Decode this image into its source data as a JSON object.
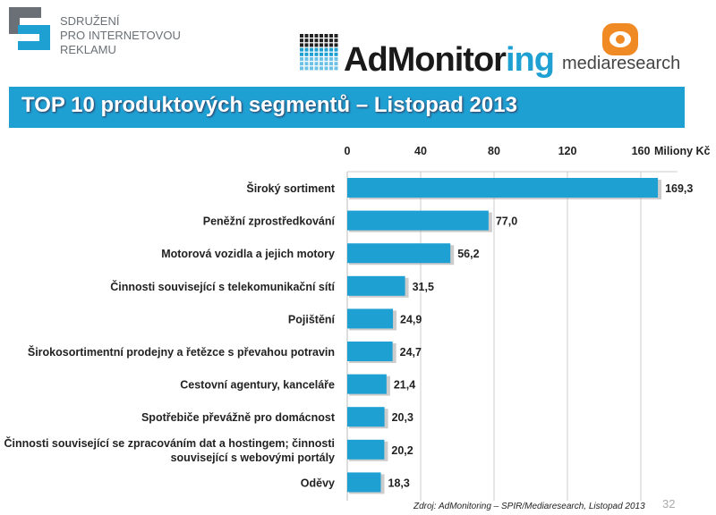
{
  "header": {
    "spir_logo_text": [
      "SDRUŽENÍ",
      "PRO INTERNETOVOU",
      "REKLAMU"
    ],
    "admonitoring_logo": {
      "main": "AdMonitor",
      "accent": "ing"
    },
    "mediaresearch_logo": "mediaresearch",
    "title": "TOP 10 produktových segmentů – Listopad 2013",
    "accent_color": "#1fa0d3"
  },
  "chart_data": {
    "type": "bar",
    "orientation": "horizontal",
    "unit_label": "Miliony Kč",
    "xlim": [
      0,
      180
    ],
    "ticks": [
      "0",
      "40",
      "80",
      "120",
      "160"
    ],
    "tick_values": [
      0,
      40,
      80,
      120,
      160
    ],
    "grid": true,
    "bar_color": "#1fa0d3",
    "categories": [
      [
        "Široký sortiment"
      ],
      [
        "Peněžní zprostředkování"
      ],
      [
        "Motorová vozidla a jejich motory"
      ],
      [
        "Činnosti související s telekomunikační sítí"
      ],
      [
        "Pojištění"
      ],
      [
        "Širokosortimentní prodejny a řetězce s převahou potravin"
      ],
      [
        "Cestovní agentury, kanceláře"
      ],
      [
        "Spotřebiče převážně pro domácnost"
      ],
      [
        "Činnosti související se zpracováním dat a hostingem; činnosti",
        "související s webovými portály"
      ],
      [
        "Oděvy"
      ]
    ],
    "values": [
      169.3,
      77.0,
      56.2,
      31.5,
      24.9,
      24.7,
      21.4,
      20.3,
      20.2,
      18.3
    ],
    "value_labels": [
      "169,3",
      "77,0",
      "56,2",
      "31,5",
      "24,9",
      "24,7",
      "21,4",
      "20,3",
      "20,2",
      "18,3"
    ]
  },
  "footer": {
    "source": "Zdroj: AdMonitoring – SPIR/Mediaresearch, Listopad 2013",
    "page": "32"
  }
}
